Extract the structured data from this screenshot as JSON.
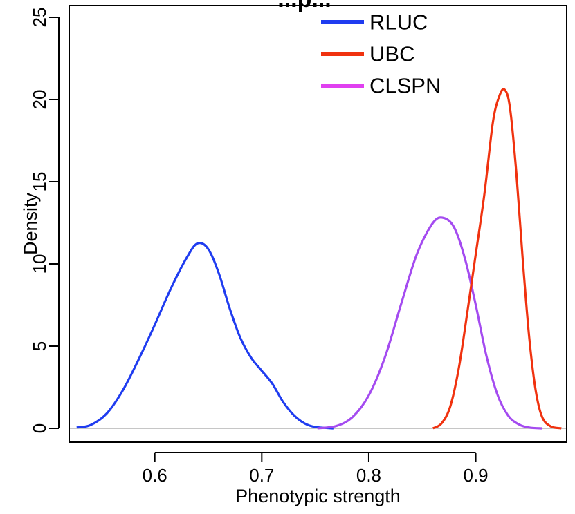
{
  "chart_data": {
    "type": "line",
    "title": "...p...",
    "xlabel": "Phenotypic strength",
    "ylabel": "Density",
    "xlim": [
      0.52,
      0.985
    ],
    "ylim": [
      0,
      25
    ],
    "x_ticks": [
      "0.6",
      "0.7",
      "0.8",
      "0.9"
    ],
    "y_ticks": [
      "0",
      "5",
      "10",
      "15",
      "20",
      "25"
    ],
    "legend_position": "top-right",
    "baseline": "horizontal zero line (gray)",
    "grid": false,
    "legend": [
      {
        "name": "RLUC",
        "color": "#1f3cf0"
      },
      {
        "name": "UBC",
        "color": "#f0320f"
      },
      {
        "name": "CLSPN",
        "color": "#e040f0"
      }
    ],
    "series": [
      {
        "name": "RLUC",
        "color": "#1f3cf0",
        "points": [
          [
            0.527,
            0.05
          ],
          [
            0.54,
            0.2
          ],
          [
            0.555,
            0.9
          ],
          [
            0.57,
            2.3
          ],
          [
            0.585,
            4.2
          ],
          [
            0.6,
            6.3
          ],
          [
            0.615,
            8.5
          ],
          [
            0.63,
            10.4
          ],
          [
            0.64,
            11.25
          ],
          [
            0.65,
            10.9
          ],
          [
            0.66,
            9.4
          ],
          [
            0.67,
            7.3
          ],
          [
            0.68,
            5.5
          ],
          [
            0.69,
            4.3
          ],
          [
            0.7,
            3.5
          ],
          [
            0.71,
            2.7
          ],
          [
            0.72,
            1.6
          ],
          [
            0.73,
            0.8
          ],
          [
            0.74,
            0.3
          ],
          [
            0.75,
            0.08
          ],
          [
            0.767,
            0.0
          ]
        ]
      },
      {
        "name": "CLSPN",
        "color": "#a44bf0",
        "points": [
          [
            0.752,
            0.0
          ],
          [
            0.77,
            0.15
          ],
          [
            0.785,
            0.7
          ],
          [
            0.8,
            2.0
          ],
          [
            0.815,
            4.3
          ],
          [
            0.83,
            7.5
          ],
          [
            0.845,
            10.6
          ],
          [
            0.86,
            12.5
          ],
          [
            0.87,
            12.8
          ],
          [
            0.88,
            12.2
          ],
          [
            0.89,
            10.3
          ],
          [
            0.9,
            7.5
          ],
          [
            0.91,
            4.4
          ],
          [
            0.92,
            2.1
          ],
          [
            0.93,
            0.8
          ],
          [
            0.94,
            0.25
          ],
          [
            0.95,
            0.05
          ],
          [
            0.962,
            0.0
          ]
        ]
      },
      {
        "name": "UBC",
        "color": "#f0320f",
        "points": [
          [
            0.86,
            0.0
          ],
          [
            0.868,
            0.3
          ],
          [
            0.876,
            1.3
          ],
          [
            0.884,
            3.6
          ],
          [
            0.892,
            7.0
          ],
          [
            0.9,
            10.6
          ],
          [
            0.908,
            14.2
          ],
          [
            0.916,
            18.6
          ],
          [
            0.922,
            20.2
          ],
          [
            0.927,
            20.6
          ],
          [
            0.932,
            19.5
          ],
          [
            0.938,
            15.5
          ],
          [
            0.944,
            10.2
          ],
          [
            0.95,
            5.5
          ],
          [
            0.956,
            2.3
          ],
          [
            0.962,
            0.7
          ],
          [
            0.97,
            0.12
          ],
          [
            0.98,
            0.0
          ]
        ]
      }
    ]
  }
}
